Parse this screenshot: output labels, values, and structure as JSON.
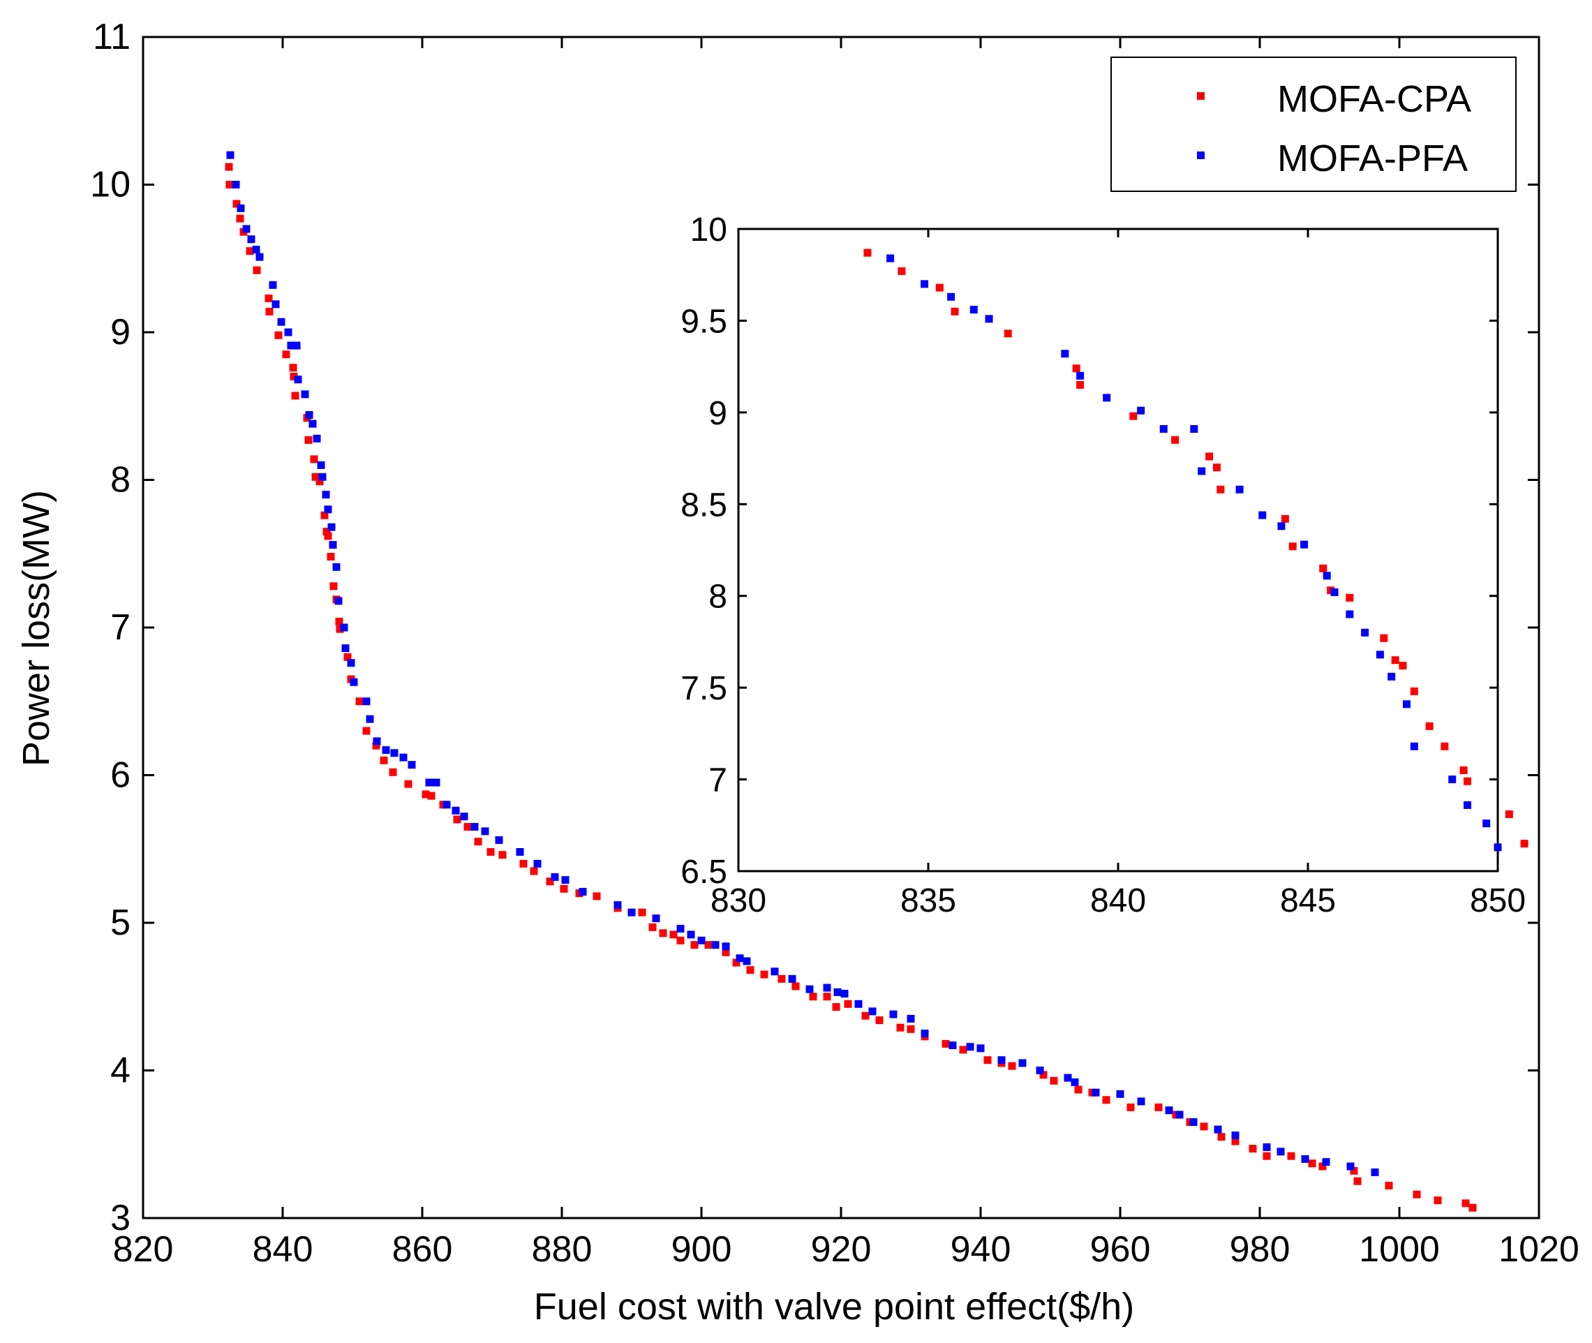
{
  "chart_data": {
    "type": "scatter",
    "xlabel": "Fuel cost with valve point effect($/h)",
    "ylabel": "Power loss(MW)",
    "xlim": [
      820,
      1020
    ],
    "ylim": [
      3,
      11
    ],
    "xticks": [
      "820",
      "840",
      "860",
      "880",
      "900",
      "920",
      "940",
      "960",
      "980",
      "1000",
      "1020"
    ],
    "yticks": [
      "3",
      "4",
      "5",
      "6",
      "7",
      "8",
      "9",
      "10",
      "11"
    ],
    "legend": {
      "placement": "top-right",
      "entries": [
        {
          "name": "MOFA-CPA",
          "color": "#ff0000"
        },
        {
          "name": "MOFA-PFA",
          "color": "#0000ff"
        }
      ]
    },
    "series": [
      {
        "name": "MOFA-CPA",
        "color": "#ff0000",
        "points": [
          [
            832.3,
            10.12
          ],
          [
            832.4,
            10.0
          ],
          [
            833.4,
            9.87
          ],
          [
            833.9,
            9.77
          ],
          [
            834.4,
            9.68
          ],
          [
            835.3,
            9.55
          ],
          [
            836.3,
            9.42
          ],
          [
            838.0,
            9.23
          ],
          [
            838.1,
            9.14
          ],
          [
            839.4,
            8.98
          ],
          [
            840.5,
            8.85
          ],
          [
            841.5,
            8.76
          ],
          [
            841.6,
            8.7
          ],
          [
            841.8,
            8.57
          ],
          [
            843.5,
            8.42
          ],
          [
            843.7,
            8.27
          ],
          [
            844.5,
            8.14
          ],
          [
            844.7,
            8.02
          ],
          [
            845.3,
            7.99
          ],
          [
            846.0,
            7.76
          ],
          [
            846.3,
            7.65
          ],
          [
            846.5,
            7.62
          ],
          [
            846.9,
            7.48
          ],
          [
            847.3,
            7.28
          ],
          [
            847.7,
            7.19
          ],
          [
            848.1,
            7.04
          ],
          [
            848.2,
            6.99
          ],
          [
            849.3,
            6.8
          ],
          [
            849.8,
            6.65
          ],
          [
            851.0,
            6.5
          ],
          [
            852.0,
            6.3
          ],
          [
            853.4,
            6.2
          ],
          [
            854.5,
            6.1
          ],
          [
            855.8,
            6.02
          ],
          [
            858.0,
            5.94
          ],
          [
            860.5,
            5.87
          ],
          [
            861.3,
            5.86
          ],
          [
            863.0,
            5.8
          ],
          [
            865.0,
            5.7
          ],
          [
            866.5,
            5.65
          ],
          [
            868.0,
            5.55
          ],
          [
            869.8,
            5.48
          ],
          [
            871.5,
            5.46
          ],
          [
            874.5,
            5.4
          ],
          [
            876.0,
            5.35
          ],
          [
            878.3,
            5.28
          ],
          [
            880.3,
            5.23
          ],
          [
            882.5,
            5.2
          ],
          [
            885.0,
            5.18
          ],
          [
            888.0,
            5.1
          ],
          [
            891.5,
            5.07
          ],
          [
            893.0,
            4.97
          ],
          [
            894.5,
            4.93
          ],
          [
            896.0,
            4.92
          ],
          [
            897.0,
            4.88
          ],
          [
            899.0,
            4.85
          ],
          [
            901.0,
            4.85
          ],
          [
            903.5,
            4.8
          ],
          [
            905.0,
            4.73
          ],
          [
            907.0,
            4.68
          ],
          [
            909.0,
            4.65
          ],
          [
            911.5,
            4.62
          ],
          [
            913.5,
            4.57
          ],
          [
            916.0,
            4.5
          ],
          [
            918.0,
            4.5
          ],
          [
            919.3,
            4.43
          ],
          [
            921.0,
            4.45
          ],
          [
            923.5,
            4.37
          ],
          [
            925.5,
            4.34
          ],
          [
            928.5,
            4.29
          ],
          [
            930.0,
            4.28
          ],
          [
            932.0,
            4.23
          ],
          [
            935.0,
            4.18
          ],
          [
            937.5,
            4.14
          ],
          [
            941.0,
            4.07
          ],
          [
            943.0,
            4.05
          ],
          [
            944.5,
            4.03
          ],
          [
            949.0,
            3.97
          ],
          [
            950.5,
            3.93
          ],
          [
            954.0,
            3.87
          ],
          [
            956.0,
            3.85
          ],
          [
            958.0,
            3.8
          ],
          [
            961.5,
            3.75
          ],
          [
            965.5,
            3.75
          ],
          [
            968.0,
            3.7
          ],
          [
            970.0,
            3.65
          ],
          [
            972.0,
            3.62
          ],
          [
            974.5,
            3.55
          ],
          [
            976.5,
            3.52
          ],
          [
            979.0,
            3.47
          ],
          [
            981.0,
            3.42
          ],
          [
            984.5,
            3.42
          ],
          [
            987.5,
            3.37
          ],
          [
            989.0,
            3.35
          ],
          [
            993.5,
            3.32
          ],
          [
            994.0,
            3.25
          ],
          [
            998.5,
            3.22
          ],
          [
            1002.5,
            3.16
          ],
          [
            1005.5,
            3.12
          ],
          [
            1009.5,
            3.1
          ],
          [
            1010.5,
            3.07
          ]
        ]
      },
      {
        "name": "MOFA-PFA",
        "color": "#0000ff",
        "points": [
          [
            832.5,
            10.2
          ],
          [
            833.3,
            10.0
          ],
          [
            834.0,
            9.84
          ],
          [
            834.8,
            9.7
          ],
          [
            835.5,
            9.63
          ],
          [
            836.2,
            9.56
          ],
          [
            836.7,
            9.51
          ],
          [
            838.6,
            9.32
          ],
          [
            839.0,
            9.19
          ],
          [
            839.8,
            9.07
          ],
          [
            840.8,
            9.0
          ],
          [
            841.2,
            8.91
          ],
          [
            842.0,
            8.91
          ],
          [
            842.2,
            8.68
          ],
          [
            843.2,
            8.58
          ],
          [
            843.8,
            8.44
          ],
          [
            844.3,
            8.38
          ],
          [
            844.9,
            8.28
          ],
          [
            845.5,
            8.1
          ],
          [
            845.7,
            8.02
          ],
          [
            846.2,
            7.9
          ],
          [
            846.5,
            7.8
          ],
          [
            847.0,
            7.68
          ],
          [
            847.2,
            7.56
          ],
          [
            847.7,
            7.41
          ],
          [
            848.0,
            7.18
          ],
          [
            848.8,
            7.0
          ],
          [
            849.0,
            6.86
          ],
          [
            849.8,
            6.76
          ],
          [
            850.2,
            6.63
          ],
          [
            852.0,
            6.5
          ],
          [
            852.5,
            6.38
          ],
          [
            853.5,
            6.23
          ],
          [
            854.8,
            6.17
          ],
          [
            856.0,
            6.15
          ],
          [
            857.3,
            6.12
          ],
          [
            858.5,
            6.07
          ],
          [
            861.0,
            5.95
          ],
          [
            862.0,
            5.95
          ],
          [
            863.5,
            5.8
          ],
          [
            864.8,
            5.76
          ],
          [
            866.0,
            5.72
          ],
          [
            867.5,
            5.65
          ],
          [
            869.0,
            5.62
          ],
          [
            871.0,
            5.56
          ],
          [
            874.0,
            5.48
          ],
          [
            876.5,
            5.4
          ],
          [
            879.0,
            5.31
          ],
          [
            880.5,
            5.29
          ],
          [
            883.0,
            5.21
          ],
          [
            888.0,
            5.12
          ],
          [
            890.0,
            5.07
          ],
          [
            893.5,
            5.03
          ],
          [
            897.0,
            4.96
          ],
          [
            898.5,
            4.92
          ],
          [
            900.0,
            4.88
          ],
          [
            902.0,
            4.85
          ],
          [
            903.5,
            4.84
          ],
          [
            905.5,
            4.76
          ],
          [
            906.5,
            4.74
          ],
          [
            910.5,
            4.67
          ],
          [
            913.0,
            4.62
          ],
          [
            915.5,
            4.55
          ],
          [
            918.0,
            4.56
          ],
          [
            919.5,
            4.53
          ],
          [
            920.5,
            4.52
          ],
          [
            922.5,
            4.45
          ],
          [
            924.5,
            4.4
          ],
          [
            927.5,
            4.38
          ],
          [
            930.0,
            4.35
          ],
          [
            932.0,
            4.25
          ],
          [
            936.0,
            4.17
          ],
          [
            938.5,
            4.16
          ],
          [
            940.0,
            4.15
          ],
          [
            943.0,
            4.07
          ],
          [
            946.0,
            4.05
          ],
          [
            948.5,
            4.0
          ],
          [
            952.5,
            3.95
          ],
          [
            953.5,
            3.92
          ],
          [
            956.5,
            3.85
          ],
          [
            960.0,
            3.84
          ],
          [
            963.0,
            3.79
          ],
          [
            967.0,
            3.73
          ],
          [
            968.5,
            3.7
          ],
          [
            970.5,
            3.65
          ],
          [
            974.0,
            3.6
          ],
          [
            976.5,
            3.56
          ],
          [
            981.0,
            3.48
          ],
          [
            983.0,
            3.45
          ],
          [
            986.5,
            3.4
          ],
          [
            989.5,
            3.38
          ],
          [
            993.0,
            3.35
          ],
          [
            996.5,
            3.31
          ]
        ]
      }
    ],
    "inset": {
      "type": "scatter",
      "xlim": [
        830,
        850
      ],
      "ylim": [
        6.5,
        10
      ],
      "xticks": [
        "830",
        "835",
        "840",
        "845",
        "850"
      ],
      "yticks": [
        "6.5",
        "7",
        "7.5",
        "8",
        "8.5",
        "9",
        "9.5",
        "10"
      ],
      "series": [
        {
          "name": "MOFA-CPA",
          "color": "#ff0000",
          "points": [
            [
              833.4,
              9.87
            ],
            [
              834.3,
              9.77
            ],
            [
              835.3,
              9.68
            ],
            [
              835.7,
              9.55
            ],
            [
              837.1,
              9.43
            ],
            [
              838.9,
              9.24
            ],
            [
              839.0,
              9.15
            ],
            [
              840.4,
              8.98
            ],
            [
              841.5,
              8.85
            ],
            [
              842.4,
              8.76
            ],
            [
              842.6,
              8.7
            ],
            [
              842.7,
              8.58
            ],
            [
              844.4,
              8.42
            ],
            [
              844.6,
              8.27
            ],
            [
              845.4,
              8.15
            ],
            [
              845.6,
              8.03
            ],
            [
              846.1,
              7.99
            ],
            [
              847.0,
              7.77
            ],
            [
              847.3,
              7.65
            ],
            [
              847.5,
              7.62
            ],
            [
              847.8,
              7.48
            ],
            [
              848.2,
              7.29
            ],
            [
              848.6,
              7.18
            ],
            [
              849.1,
              7.05
            ],
            [
              849.2,
              6.99
            ],
            [
              850.3,
              6.81
            ],
            [
              850.7,
              6.65
            ]
          ]
        },
        {
          "name": "MOFA-PFA",
          "color": "#0000ff",
          "points": [
            [
              834.0,
              9.84
            ],
            [
              834.9,
              9.7
            ],
            [
              835.6,
              9.63
            ],
            [
              836.2,
              9.56
            ],
            [
              836.6,
              9.51
            ],
            [
              838.6,
              9.32
            ],
            [
              839.0,
              9.2
            ],
            [
              839.7,
              9.08
            ],
            [
              840.6,
              9.01
            ],
            [
              841.2,
              8.91
            ],
            [
              842.0,
              8.91
            ],
            [
              842.2,
              8.68
            ],
            [
              843.2,
              8.58
            ],
            [
              843.8,
              8.44
            ],
            [
              844.3,
              8.38
            ],
            [
              844.9,
              8.28
            ],
            [
              845.5,
              8.11
            ],
            [
              845.7,
              8.02
            ],
            [
              846.1,
              7.9
            ],
            [
              846.5,
              7.8
            ],
            [
              846.9,
              7.68
            ],
            [
              847.2,
              7.56
            ],
            [
              847.6,
              7.41
            ],
            [
              847.8,
              7.18
            ],
            [
              848.8,
              7.0
            ],
            [
              849.2,
              6.86
            ],
            [
              849.7,
              6.76
            ],
            [
              850.0,
              6.63
            ]
          ]
        }
      ]
    }
  }
}
